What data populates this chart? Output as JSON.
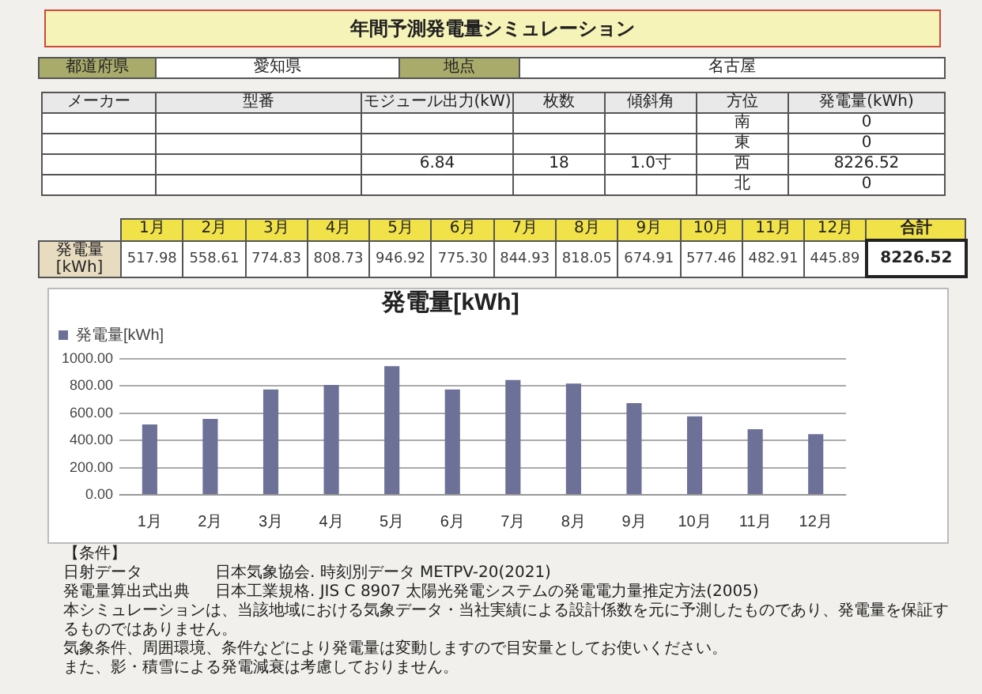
{
  "chart_data": {
    "type": "bar",
    "title": "発電量[kWh]",
    "categories": [
      "1月",
      "2月",
      "3月",
      "4月",
      "5月",
      "6月",
      "7月",
      "8月",
      "9月",
      "10月",
      "11月",
      "12月"
    ],
    "series": [
      {
        "name": "発電量[kWh]",
        "color": "#6d7097",
        "values": [
          517.98,
          558.61,
          774.83,
          808.73,
          946.92,
          775.3,
          844.93,
          818.05,
          674.91,
          577.46,
          482.91,
          445.89
        ],
        "value_labels": [
          "517.98",
          "558.61",
          "774.83",
          "808.73",
          "946.92",
          "775.30",
          "844.93",
          "818.05",
          "674.91",
          "577.46",
          "482.91",
          "445.89"
        ]
      }
    ],
    "ylim": [
      0,
      1000
    ],
    "yticks": [
      {
        "value": 0,
        "label": "0.00"
      },
      {
        "value": 200,
        "label": "200.00"
      },
      {
        "value": 400,
        "label": "400.00"
      },
      {
        "value": 600,
        "label": "600.00"
      },
      {
        "value": 800,
        "label": "800.00"
      },
      {
        "value": 1000,
        "label": "1000.00"
      }
    ],
    "grid": "y",
    "legend": "top left",
    "annotations": [
      "年間予測発電量シミュレーション",
      "都道府県",
      "愛知県",
      "地点",
      "名古屋",
      "メーカー",
      "型番",
      "モジュール出力(kW)",
      "枚数",
      "傾斜角",
      "方位",
      "発電量(kWh)",
      "6.84",
      "18",
      "1.0寸",
      "南",
      "0",
      "東",
      "0",
      "西",
      "8226.52",
      "北",
      "0",
      "発電量 [kWh]",
      "合計",
      "8226.52",
      "【条件】",
      "日射データ",
      "日本気象協会. 時刻別データ METPV-20(2021)",
      "発電量算出式出典",
      "日本工業規格. JIS C 8907 太陽光発電システムの発電電力量推定方法(2005)",
      "本シミュレーションは、当該地域における気象データ・当社実績による設計係数を元に予測したものであり、発電量を保証するものではありません。",
      "気象条件、周囲環境、条件などにより発電量は変動しますので目安量としてお使いください。",
      "また、影・積雪による発電減衰は考慮しておりません。"
    ]
  }
}
